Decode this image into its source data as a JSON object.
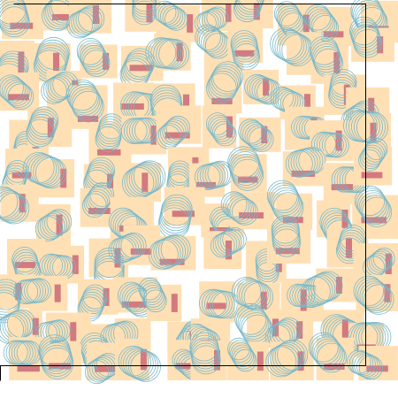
{
  "palette": {
    "background": "#ffffff",
    "tile": "#ffe0b5",
    "bar": "#d27a80",
    "circle_stroke": "#7ab8c8",
    "border": "#000000"
  },
  "pattern": {
    "description_free": true,
    "tile_count": 100,
    "circles_per_tile": 6
  }
}
